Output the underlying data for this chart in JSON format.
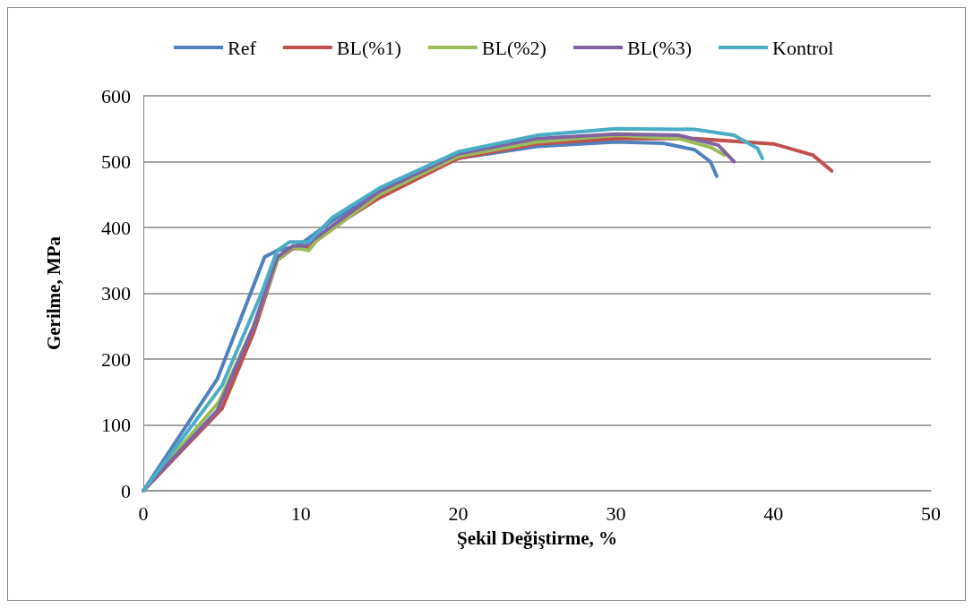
{
  "chart_data": {
    "type": "line",
    "xlabel": "Şekil Değiştirme, %",
    "ylabel": "Gerilme, MPa",
    "xlim": [
      0,
      50
    ],
    "xticks": [
      0,
      10,
      20,
      30,
      40,
      50
    ],
    "ylim": [
      0,
      600
    ],
    "yticks": [
      0,
      100,
      200,
      300,
      400,
      500,
      600
    ],
    "grid": "y",
    "legend": "top",
    "marker": "none",
    "line_style": "solid",
    "series": [
      {
        "name": "Ref",
        "color": "#4f81bd",
        "x": [
          0,
          4.7,
          7.7,
          8.5,
          9.5,
          10,
          12,
          15,
          20,
          25,
          30,
          33,
          35,
          36,
          36.4
        ],
        "values": [
          0,
          170,
          355,
          365,
          370,
          375,
          410,
          455,
          505,
          523,
          530,
          528,
          518,
          500,
          478
        ]
      },
      {
        "name": "BL(%1)",
        "color": "#c0504d",
        "x": [
          0,
          5,
          7,
          8.5,
          9.5,
          10.5,
          11,
          13,
          15,
          20,
          25,
          30,
          35,
          40,
          42.5,
          43.7
        ],
        "values": [
          0,
          125,
          240,
          350,
          368,
          368,
          380,
          415,
          445,
          505,
          527,
          535,
          535,
          527,
          510,
          486
        ]
      },
      {
        "name": "BL(%2)",
        "color": "#9bbb59",
        "x": [
          0,
          4.8,
          7,
          8.5,
          9.5,
          10.5,
          11,
          15,
          20,
          25,
          30,
          34,
          36,
          36.9
        ],
        "values": [
          0,
          135,
          250,
          350,
          370,
          365,
          380,
          450,
          508,
          530,
          540,
          535,
          522,
          510
        ]
      },
      {
        "name": "BL(%3)",
        "color": "#8064a2",
        "x": [
          0,
          4.7,
          7,
          8.5,
          9.5,
          10.3,
          11,
          15,
          20,
          25,
          30,
          34,
          36.5,
          37.5
        ],
        "values": [
          0,
          122,
          250,
          355,
          372,
          372,
          385,
          455,
          512,
          535,
          542,
          540,
          525,
          500
        ]
      },
      {
        "name": "Kontrol",
        "color": "#4bacc6",
        "x": [
          0,
          5,
          7.5,
          8.5,
          9.3,
          10,
          10.5,
          12,
          15,
          20,
          25,
          30,
          35,
          37.5,
          39,
          39.3
        ],
        "values": [
          0,
          160,
          300,
          365,
          378,
          378,
          378,
          415,
          460,
          515,
          540,
          550,
          549,
          540,
          520,
          505
        ]
      }
    ]
  }
}
